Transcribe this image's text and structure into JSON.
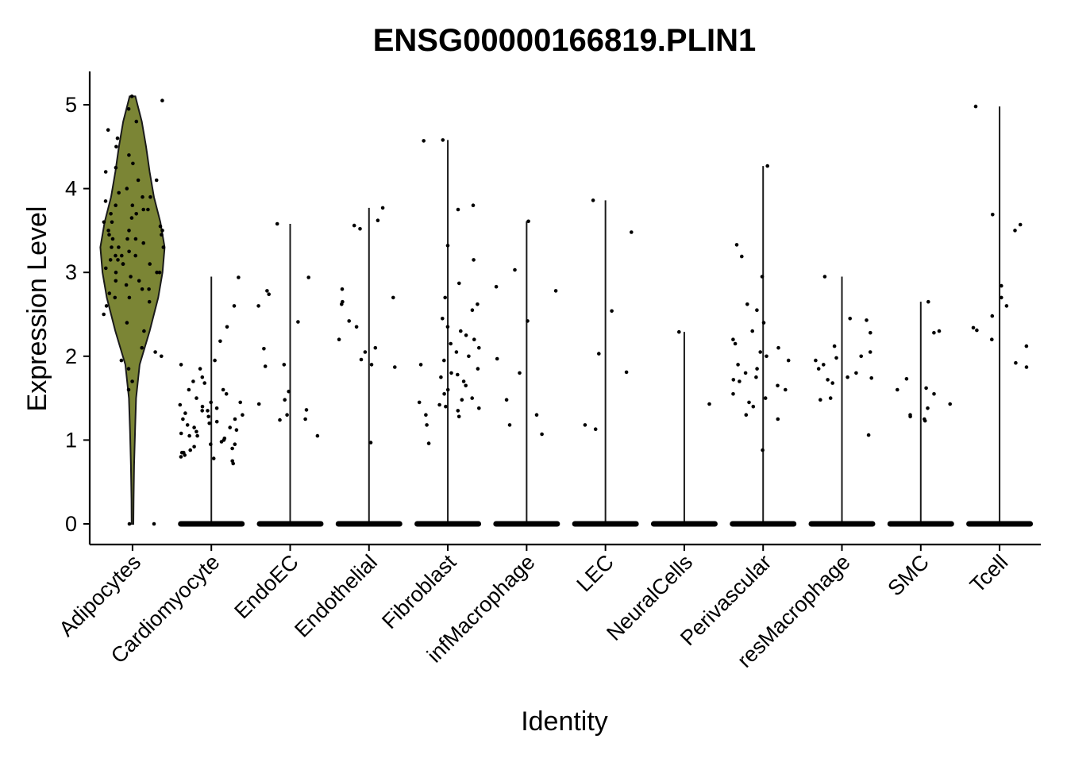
{
  "chart_data": {
    "type": "violin",
    "title": "ENSG00000166819.PLIN1",
    "xlabel": "Identity",
    "ylabel": "Expression Level",
    "categories": [
      "Adipocytes",
      "Cardiomyocyte",
      "EndoEC",
      "Endothelial",
      "Fibroblast",
      "infMacrophage",
      "LEC",
      "NeuralCells",
      "Perivascular",
      "resMacrophage",
      "SMC",
      "Tcell"
    ],
    "y_ticks": [
      0,
      1,
      2,
      3,
      4,
      5
    ],
    "ylim": [
      -0.25,
      5.4
    ],
    "fill_colors": [
      "#7b8535",
      "#ffffff",
      "#ffffff",
      "#ffffff",
      "#ffffff",
      "#ffffff",
      "#ffffff",
      "#ffffff",
      "#ffffff",
      "#ffffff",
      "#ffffff",
      "#ffffff"
    ],
    "max_values": [
      5.1,
      2.95,
      3.58,
      3.77,
      4.58,
      3.61,
      3.86,
      2.29,
      4.27,
      2.95,
      2.65,
      4.98
    ],
    "violins": [
      {
        "name": "Adipocytes",
        "max": 5.1,
        "profile": [
          [
            0,
            0.12
          ],
          [
            0.3,
            0.15
          ],
          [
            0.7,
            0.22
          ],
          [
            1.1,
            0.35
          ],
          [
            1.5,
            0.5
          ],
          [
            1.9,
            1.0
          ],
          [
            2.3,
            2.4
          ],
          [
            2.7,
            3.6
          ],
          [
            3.0,
            4.2
          ],
          [
            3.3,
            4.5
          ],
          [
            3.6,
            3.9
          ],
          [
            3.9,
            3.0
          ],
          [
            4.2,
            2.4
          ],
          [
            4.5,
            1.9
          ],
          [
            4.8,
            1.3
          ],
          [
            5.0,
            0.7
          ],
          [
            5.1,
            0.4
          ]
        ]
      }
    ],
    "jitter_points": [
      {
        "category": "Adipocytes",
        "values": [
          5.1,
          4.8,
          4.7,
          4.5,
          4.4,
          4.3,
          4.2,
          4.1,
          4.1,
          4.0,
          3.95,
          3.9,
          3.9,
          3.85,
          3.8,
          3.8,
          3.75,
          3.7,
          3.7,
          3.65,
          3.6,
          3.6,
          3.55,
          3.5,
          3.5,
          3.5,
          3.45,
          3.4,
          3.4,
          3.4,
          3.35,
          3.3,
          3.3,
          3.3,
          3.25,
          3.2,
          3.2,
          3.2,
          3.15,
          3.1,
          3.1,
          3.1,
          3.05,
          3.0,
          3.0,
          3.0,
          2.95,
          2.9,
          2.9,
          2.85,
          2.8,
          2.8,
          2.75,
          2.7,
          2.7,
          2.6,
          2.5,
          2.4,
          2.3,
          2.1,
          2.0,
          1.95,
          1.85,
          1.7,
          1.6,
          0.0,
          0.0,
          4.95,
          4.6,
          4.25,
          3.75,
          3.45,
          3.15,
          2.65,
          2.05,
          5.05
        ]
      },
      {
        "category": "Cardiomyocyte",
        "values": [
          2.94,
          2.6,
          2.35,
          2.18,
          1.95,
          1.9,
          1.85,
          1.75,
          1.7,
          1.68,
          1.6,
          1.55,
          1.5,
          1.45,
          1.42,
          1.4,
          1.38,
          1.35,
          1.32,
          1.3,
          1.28,
          1.25,
          1.22,
          1.2,
          1.18,
          1.15,
          1.12,
          1.1,
          1.08,
          1.05,
          1.02,
          1.0,
          0.98,
          0.95,
          0.92,
          0.9,
          0.88,
          0.85,
          0.82,
          0.8,
          0.78,
          0.75,
          0.72,
          1.6,
          1.45,
          1.25,
          1.05,
          0.95,
          0.85,
          1.35,
          1.15
        ]
      },
      {
        "category": "EndoEC",
        "values": [
          3.58,
          2.94,
          2.78,
          2.74,
          2.6,
          2.41,
          2.09,
          1.9,
          1.88,
          1.58,
          1.48,
          1.43,
          1.36,
          1.3,
          1.25,
          1.24,
          1.05
        ]
      },
      {
        "category": "Endothelial",
        "values": [
          3.77,
          3.62,
          3.56,
          3.52,
          2.8,
          2.7,
          2.65,
          2.62,
          2.42,
          2.35,
          2.2,
          2.1,
          2.05,
          1.96,
          1.9,
          1.87,
          0.97
        ]
      },
      {
        "category": "Fibroblast",
        "values": [
          4.58,
          4.57,
          3.8,
          3.75,
          3.32,
          3.15,
          2.87,
          2.7,
          2.62,
          2.55,
          2.45,
          2.35,
          2.3,
          2.25,
          2.2,
          2.15,
          2.1,
          2.05,
          2.0,
          1.95,
          1.9,
          1.85,
          1.8,
          1.78,
          1.75,
          1.7,
          1.65,
          1.6,
          1.55,
          1.5,
          1.48,
          1.45,
          1.42,
          1.4,
          1.38,
          1.35,
          1.3,
          1.28,
          1.18,
          0.96
        ]
      },
      {
        "category": "infMacrophage",
        "values": [
          3.61,
          3.03,
          2.83,
          2.78,
          2.42,
          1.97,
          1.8,
          1.48,
          1.3,
          1.18,
          1.07
        ]
      },
      {
        "category": "LEC",
        "values": [
          3.86,
          3.48,
          2.54,
          2.03,
          1.81,
          1.18,
          1.13
        ]
      },
      {
        "category": "NeuralCells",
        "values": [
          2.29,
          1.43
        ]
      },
      {
        "category": "Perivascular",
        "values": [
          4.27,
          3.33,
          3.19,
          2.95,
          2.62,
          2.55,
          2.4,
          2.3,
          2.2,
          2.15,
          2.1,
          2.05,
          2.0,
          1.95,
          1.9,
          1.85,
          1.8,
          1.75,
          1.72,
          1.7,
          1.65,
          1.6,
          1.55,
          1.5,
          1.45,
          1.4,
          1.3,
          1.25,
          0.88
        ]
      },
      {
        "category": "resMacrophage",
        "values": [
          2.95,
          2.45,
          2.43,
          2.28,
          2.12,
          2.05,
          2.0,
          1.98,
          1.95,
          1.9,
          1.85,
          1.8,
          1.75,
          1.74,
          1.72,
          1.68,
          1.5,
          1.48,
          1.06
        ]
      },
      {
        "category": "SMC",
        "values": [
          2.65,
          2.3,
          2.28,
          1.73,
          1.62,
          1.6,
          1.55,
          1.43,
          1.38,
          1.3,
          1.28,
          1.25,
          1.23
        ]
      },
      {
        "category": "Tcell",
        "values": [
          4.98,
          3.69,
          3.57,
          3.5,
          2.84,
          2.7,
          2.6,
          2.48,
          2.34,
          2.31,
          2.2,
          2.12,
          1.92,
          1.87
        ]
      }
    ],
    "zero_jitter": true,
    "grid": false,
    "legend": "none"
  }
}
